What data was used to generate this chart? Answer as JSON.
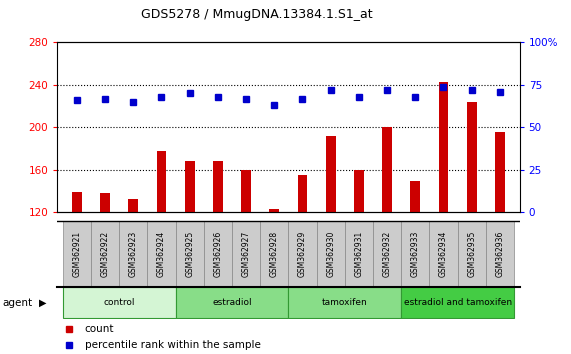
{
  "title": "GDS5278 / MmugDNA.13384.1.S1_at",
  "samples": [
    "GSM362921",
    "GSM362922",
    "GSM362923",
    "GSM362924",
    "GSM362925",
    "GSM362926",
    "GSM362927",
    "GSM362928",
    "GSM362929",
    "GSM362930",
    "GSM362931",
    "GSM362932",
    "GSM362933",
    "GSM362934",
    "GSM362935",
    "GSM362936"
  ],
  "counts": [
    139,
    138,
    133,
    178,
    168,
    168,
    160,
    123,
    155,
    192,
    160,
    200,
    150,
    243,
    224,
    196
  ],
  "percentiles": [
    66,
    67,
    65,
    68,
    70,
    68,
    67,
    63,
    67,
    72,
    68,
    72,
    68,
    74,
    72,
    71
  ],
  "groups": [
    {
      "label": "control",
      "start": 0,
      "end": 4,
      "color": "#d4f5d4"
    },
    {
      "label": "estradiol",
      "start": 4,
      "end": 8,
      "color": "#88dd88"
    },
    {
      "label": "tamoxifen",
      "start": 8,
      "end": 12,
      "color": "#88dd88"
    },
    {
      "label": "estradiol and tamoxifen",
      "start": 12,
      "end": 16,
      "color": "#44cc44"
    }
  ],
  "ylim_left": [
    120,
    280
  ],
  "ylim_right": [
    0,
    100
  ],
  "yticks_left": [
    120,
    160,
    200,
    240,
    280
  ],
  "yticks_right": [
    0,
    25,
    50,
    75,
    100
  ],
  "bar_color": "#cc0000",
  "dot_color": "#0000cc",
  "background_color": "#ffffff",
  "plot_bg_color": "#ffffff",
  "xtick_bg_color": "#cccccc",
  "legend_bar_label": "count",
  "legend_dot_label": "percentile rank within the sample",
  "agent_label": "agent"
}
